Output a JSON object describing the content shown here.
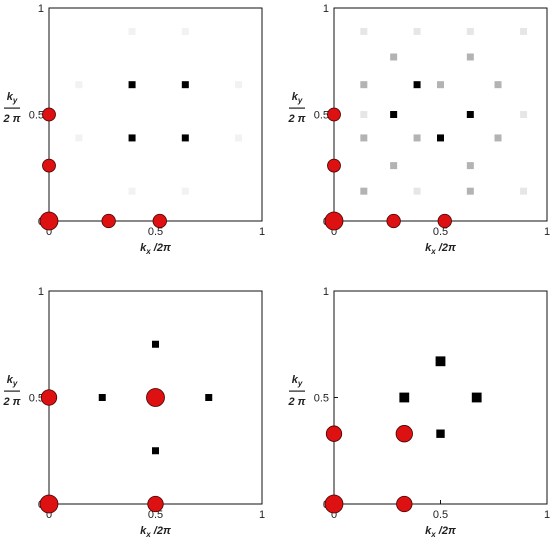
{
  "chart_data": [
    {
      "type": "scatter",
      "xlabel": "k_x /2π",
      "ylabel_num": "k_y",
      "ylabel_den": "2 π",
      "xlim": [
        0,
        1
      ],
      "ylim": [
        0,
        1
      ],
      "xticks": [
        "0",
        "0.5",
        "1"
      ],
      "yticks": [
        "0",
        "0.5",
        "1"
      ],
      "grid": false,
      "series": [
        {
          "marker": "circle",
          "color": "#dd1111",
          "points": [
            {
              "x": 0.0,
              "y": 0.0,
              "size": 1.0
            },
            {
              "x": 0.28,
              "y": 0.0,
              "size": 0.55
            },
            {
              "x": 0.52,
              "y": 0.0,
              "size": 0.55
            },
            {
              "x": 0.0,
              "y": 0.26,
              "size": 0.5
            },
            {
              "x": 0.0,
              "y": 0.5,
              "size": 0.5
            }
          ]
        },
        {
          "marker": "square",
          "points": [
            {
              "x": 0.39,
              "y": 0.64,
              "shade": 1.0
            },
            {
              "x": 0.64,
              "y": 0.64,
              "shade": 1.0
            },
            {
              "x": 0.39,
              "y": 0.39,
              "shade": 1.0
            },
            {
              "x": 0.64,
              "y": 0.39,
              "shade": 1.0
            },
            {
              "x": 0.14,
              "y": 0.64,
              "shade": 0.05
            },
            {
              "x": 0.89,
              "y": 0.64,
              "shade": 0.05
            },
            {
              "x": 0.14,
              "y": 0.39,
              "shade": 0.05
            },
            {
              "x": 0.89,
              "y": 0.39,
              "shade": 0.05
            },
            {
              "x": 0.39,
              "y": 0.89,
              "shade": 0.05
            },
            {
              "x": 0.64,
              "y": 0.89,
              "shade": 0.05
            },
            {
              "x": 0.39,
              "y": 0.14,
              "shade": 0.05
            },
            {
              "x": 0.64,
              "y": 0.14,
              "shade": 0.05
            }
          ]
        }
      ]
    },
    {
      "type": "scatter",
      "xlabel": "k_x /2π",
      "ylabel_num": "k_y",
      "ylabel_den": "2 π",
      "xlim": [
        0,
        1
      ],
      "ylim": [
        0,
        1
      ],
      "xticks": [
        "0",
        "0.5",
        "1"
      ],
      "yticks": [
        "0",
        "0.5",
        "1"
      ],
      "grid": false,
      "series": [
        {
          "marker": "circle",
          "color": "#dd1111",
          "points": [
            {
              "x": 0.0,
              "y": 0.0,
              "size": 1.0
            },
            {
              "x": 0.28,
              "y": 0.0,
              "size": 0.55
            },
            {
              "x": 0.52,
              "y": 0.0,
              "size": 0.55
            },
            {
              "x": 0.0,
              "y": 0.26,
              "size": 0.5
            },
            {
              "x": 0.0,
              "y": 0.5,
              "size": 0.5
            }
          ]
        },
        {
          "marker": "square",
          "points": [
            {
              "x": 0.39,
              "y": 0.64,
              "shade": 1.0
            },
            {
              "x": 0.64,
              "y": 0.5,
              "shade": 1.0
            },
            {
              "x": 0.5,
              "y": 0.39,
              "shade": 1.0
            },
            {
              "x": 0.28,
              "y": 0.5,
              "shade": 1.0
            },
            {
              "x": 0.14,
              "y": 0.64,
              "shade": 0.3
            },
            {
              "x": 0.14,
              "y": 0.39,
              "shade": 0.3
            },
            {
              "x": 0.28,
              "y": 0.77,
              "shade": 0.3
            },
            {
              "x": 0.64,
              "y": 0.77,
              "shade": 0.3
            },
            {
              "x": 0.77,
              "y": 0.64,
              "shade": 0.3
            },
            {
              "x": 0.77,
              "y": 0.39,
              "shade": 0.3
            },
            {
              "x": 0.64,
              "y": 0.26,
              "shade": 0.3
            },
            {
              "x": 0.28,
              "y": 0.26,
              "shade": 0.3
            },
            {
              "x": 0.5,
              "y": 0.64,
              "shade": 0.3
            },
            {
              "x": 0.39,
              "y": 0.39,
              "shade": 0.3
            },
            {
              "x": 0.14,
              "y": 0.14,
              "shade": 0.3
            },
            {
              "x": 0.64,
              "y": 0.14,
              "shade": 0.3
            },
            {
              "x": 0.14,
              "y": 0.89,
              "shade": 0.1
            },
            {
              "x": 0.39,
              "y": 0.89,
              "shade": 0.1
            },
            {
              "x": 0.64,
              "y": 0.89,
              "shade": 0.1
            },
            {
              "x": 0.89,
              "y": 0.89,
              "shade": 0.1
            },
            {
              "x": 0.89,
              "y": 0.14,
              "shade": 0.1
            },
            {
              "x": 0.89,
              "y": 0.5,
              "shade": 0.1
            },
            {
              "x": 0.39,
              "y": 0.14,
              "shade": 0.1
            },
            {
              "x": 0.14,
              "y": 0.5,
              "shade": 0.1
            }
          ]
        }
      ]
    },
    {
      "type": "scatter",
      "xlabel": "k_x /2π",
      "ylabel_num": "k_y",
      "ylabel_den": "2 π",
      "xlim": [
        0,
        1
      ],
      "ylim": [
        0,
        1
      ],
      "xticks": [
        "0",
        "0.5",
        "1"
      ],
      "yticks": [
        "0",
        "0.5",
        "1"
      ],
      "grid": false,
      "series": [
        {
          "marker": "circle",
          "color": "#dd1111",
          "points": [
            {
              "x": 0.0,
              "y": 0.0,
              "size": 1.0
            },
            {
              "x": 0.5,
              "y": 0.0,
              "size": 0.75
            },
            {
              "x": 0.0,
              "y": 0.5,
              "size": 0.75
            },
            {
              "x": 0.5,
              "y": 0.5,
              "size": 1.0
            }
          ]
        },
        {
          "marker": "square",
          "points": [
            {
              "x": 0.5,
              "y": 0.75,
              "shade": 1.0
            },
            {
              "x": 0.25,
              "y": 0.5,
              "shade": 1.0
            },
            {
              "x": 0.75,
              "y": 0.5,
              "shade": 1.0
            },
            {
              "x": 0.5,
              "y": 0.25,
              "shade": 1.0
            }
          ]
        }
      ]
    },
    {
      "type": "scatter",
      "xlabel": "k_x /2π",
      "ylabel_num": "k_y",
      "ylabel_den": "2 π",
      "xlim": [
        0,
        1
      ],
      "ylim": [
        0,
        1
      ],
      "xticks": [
        "0",
        "0.5",
        "1"
      ],
      "yticks": [
        "0",
        "0.5",
        "1"
      ],
      "grid": false,
      "series": [
        {
          "marker": "circle",
          "color": "#dd1111",
          "points": [
            {
              "x": 0.0,
              "y": 0.0,
              "size": 1.0
            },
            {
              "x": 0.33,
              "y": 0.0,
              "size": 0.75
            },
            {
              "x": 0.0,
              "y": 0.33,
              "size": 0.75
            },
            {
              "x": 0.33,
              "y": 0.33,
              "size": 0.85
            }
          ]
        },
        {
          "marker": "square",
          "points": [
            {
              "x": 0.5,
              "y": 0.67,
              "shade": 1.0,
              "size": 1.4
            },
            {
              "x": 0.33,
              "y": 0.5,
              "shade": 1.0,
              "size": 1.4
            },
            {
              "x": 0.67,
              "y": 0.5,
              "shade": 1.0,
              "size": 1.4
            },
            {
              "x": 0.5,
              "y": 0.33,
              "shade": 1.0,
              "size": 1.2
            }
          ]
        }
      ]
    }
  ]
}
